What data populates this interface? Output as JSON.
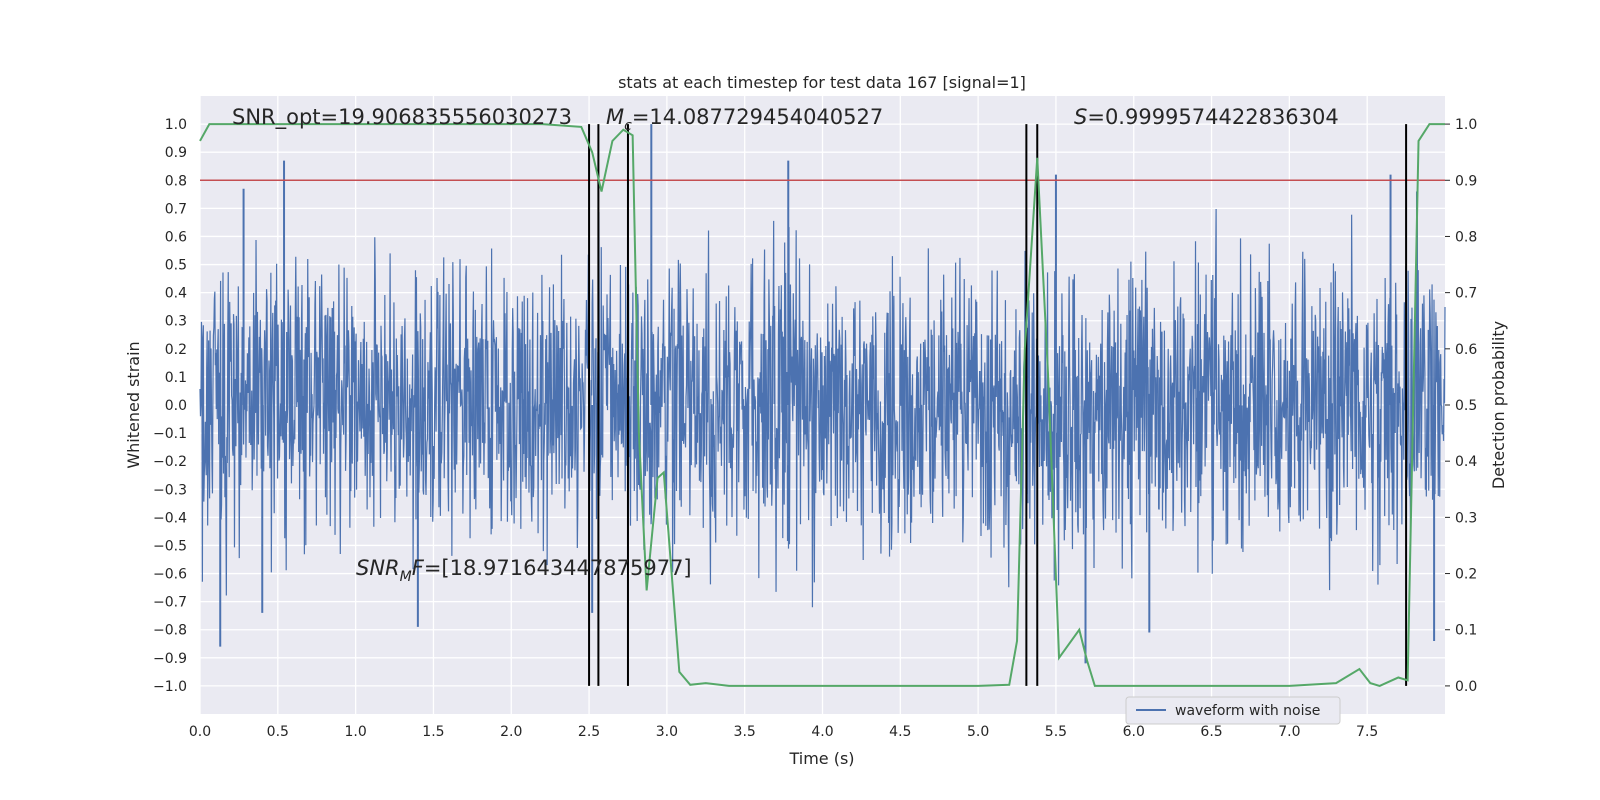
{
  "chart_data": {
    "type": "line",
    "title": "stats at each timestep for test data 167 [signal=1]",
    "xlabel": "Time (s)",
    "ylabel_left": "Whitened strain",
    "ylabel_right": "Detection probability",
    "xlim": [
      0.0,
      8.0
    ],
    "ylim_left": [
      -1.1,
      1.1
    ],
    "ylim_right": [
      -0.05,
      1.05
    ],
    "x_ticks": [
      "0.0",
      "0.5",
      "1.0",
      "1.5",
      "2.0",
      "2.5",
      "3.0",
      "3.5",
      "4.0",
      "4.5",
      "5.0",
      "5.5",
      "6.0",
      "6.5",
      "7.0",
      "7.5"
    ],
    "x_tick_values": [
      0.0,
      0.5,
      1.0,
      1.5,
      2.0,
      2.5,
      3.0,
      3.5,
      4.0,
      4.5,
      5.0,
      5.5,
      6.0,
      6.5,
      7.0,
      7.5
    ],
    "y_left_ticks": [
      "1.0",
      "0.9",
      "0.8",
      "0.7",
      "0.6",
      "0.5",
      "0.4",
      "0.3",
      "0.2",
      "0.1",
      "0.0",
      "−0.1",
      "−0.2",
      "−0.3",
      "−0.4",
      "−0.5",
      "−0.6",
      "−0.7",
      "−0.8",
      "−0.9",
      "−1.0"
    ],
    "y_left_tick_values": [
      1.0,
      0.9,
      0.8,
      0.7,
      0.6,
      0.5,
      0.4,
      0.3,
      0.2,
      0.1,
      0.0,
      -0.1,
      -0.2,
      -0.3,
      -0.4,
      -0.5,
      -0.6,
      -0.7,
      -0.8,
      -0.9,
      -1.0
    ],
    "y_right_ticks": [
      "1.0",
      "0.9",
      "0.8",
      "0.7",
      "0.6",
      "0.5",
      "0.4",
      "0.3",
      "0.2",
      "0.1",
      "0.0"
    ],
    "y_right_tick_values": [
      1.0,
      0.9,
      0.8,
      0.7,
      0.6,
      0.5,
      0.4,
      0.3,
      0.2,
      0.1,
      0.0
    ],
    "grid": true,
    "legend": {
      "position": "lower-right",
      "entries": [
        "waveform with noise"
      ]
    },
    "annotations": {
      "snr_opt": "SNR_opt=19.906835556030273",
      "mc_symbol": "M",
      "mc_sub": "c",
      "mc_value": "=14.087729454040527",
      "s_symbol": "S",
      "s_value": "=0.9999574422836304",
      "snr_mf_symbol": "SNR",
      "snr_mf_sub": "M",
      "snr_mf_tail": "F",
      "snr_mf_value": "=[18.971643447875977]"
    },
    "threshold": {
      "value_right_axis": 0.9,
      "color": "#c44e52"
    },
    "vertical_lines_x": [
      2.5,
      2.56,
      2.75,
      5.31,
      5.38,
      7.75
    ],
    "series": [
      {
        "name": "waveform with noise",
        "color": "#4c72b0",
        "axis": "left",
        "x_range": [
          0.0,
          8.0
        ],
        "typical_amplitude": 0.45,
        "peaks": [
          {
            "x": 0.54,
            "y": 0.87
          },
          {
            "x": 0.28,
            "y": 0.77
          },
          {
            "x": 2.9,
            "y": 1.0
          },
          {
            "x": 3.78,
            "y": 0.87
          },
          {
            "x": 5.5,
            "y": 0.82
          },
          {
            "x": 7.65,
            "y": 0.82
          },
          {
            "x": 7.82,
            "y": 0.76
          },
          {
            "x": 0.13,
            "y": -0.86
          },
          {
            "x": 1.4,
            "y": -0.79
          },
          {
            "x": 2.52,
            "y": -0.74
          },
          {
            "x": 5.69,
            "y": -0.92
          },
          {
            "x": 6.1,
            "y": -0.81
          },
          {
            "x": 7.93,
            "y": -0.84
          },
          {
            "x": 0.4,
            "y": -0.74
          }
        ]
      },
      {
        "name": "detection probability",
        "color": "#55a868",
        "axis": "right",
        "x": [
          0.0,
          0.06,
          0.2,
          0.5,
          1.0,
          1.5,
          2.0,
          2.2,
          2.45,
          2.52,
          2.58,
          2.65,
          2.72,
          2.78,
          2.82,
          2.87,
          2.94,
          2.98,
          3.08,
          3.15,
          3.25,
          3.4,
          4.0,
          4.5,
          5.0,
          5.2,
          5.25,
          5.3,
          5.38,
          5.45,
          5.52,
          5.65,
          5.7,
          5.75,
          6.0,
          6.5,
          7.0,
          7.3,
          7.45,
          7.52,
          7.58,
          7.7,
          7.76,
          7.83,
          7.9,
          8.0
        ],
        "y": [
          0.97,
          1.0,
          1.0,
          1.0,
          1.0,
          1.0,
          1.0,
          1.0,
          0.995,
          0.95,
          0.88,
          0.97,
          0.99,
          0.98,
          0.45,
          0.17,
          0.37,
          0.38,
          0.025,
          0.002,
          0.005,
          0.0,
          0.0,
          0.0,
          0.0,
          0.002,
          0.08,
          0.6,
          0.94,
          0.55,
          0.05,
          0.1,
          0.045,
          0.0,
          0.0,
          0.0,
          0.0,
          0.005,
          0.03,
          0.005,
          0.0,
          0.015,
          0.01,
          0.97,
          1.0,
          1.0
        ]
      }
    ]
  }
}
